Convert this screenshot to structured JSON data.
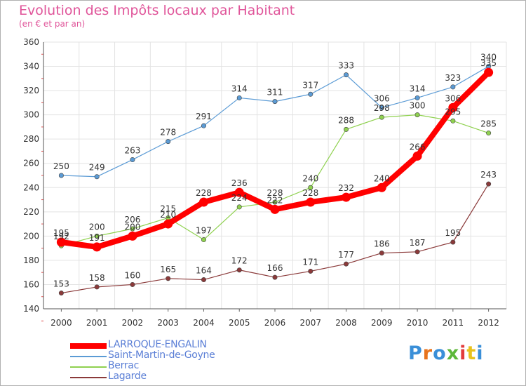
{
  "page": {
    "title": "Evolution des Impôts locaux par Habitant",
    "subtitle": "(en € et par an)"
  },
  "chart_data": {
    "type": "line",
    "title": "Evolution des Impôts locaux par Habitant",
    "subtitle": "(en € et par an)",
    "x": [
      "2000",
      "2001",
      "2002",
      "2003",
      "2004",
      "2005",
      "2006",
      "2007",
      "2008",
      "2009",
      "2010",
      "2011",
      "2012"
    ],
    "ylim": [
      140,
      360
    ],
    "yticks": [
      140,
      160,
      180,
      200,
      220,
      240,
      260,
      280,
      300,
      320,
      340,
      360
    ],
    "grid": true,
    "legend_position": "bottom-left",
    "series": [
      {
        "name": "LARROQUE-ENGALIN",
        "color": "#ff0000",
        "emphasis": true,
        "values": [
          195,
          191,
          200,
          210,
          228,
          236,
          222,
          228,
          232,
          240,
          266,
          306,
          335
        ]
      },
      {
        "name": "Saint-Martin-de-Goyne",
        "color": "#5b9bd5",
        "values": [
          250,
          249,
          263,
          278,
          291,
          314,
          311,
          317,
          333,
          306,
          314,
          323,
          340
        ]
      },
      {
        "name": "Berrac",
        "color": "#8fd14f",
        "values": [
          192,
          200,
          206,
          215,
          197,
          224,
          228,
          240,
          288,
          298,
          300,
          295,
          285
        ]
      },
      {
        "name": "Lagarde",
        "color": "#8b3a3a",
        "values": [
          153,
          158,
          160,
          165,
          164,
          172,
          166,
          171,
          177,
          186,
          187,
          195,
          243
        ]
      }
    ]
  },
  "logo": {
    "text": "Proxiti"
  }
}
